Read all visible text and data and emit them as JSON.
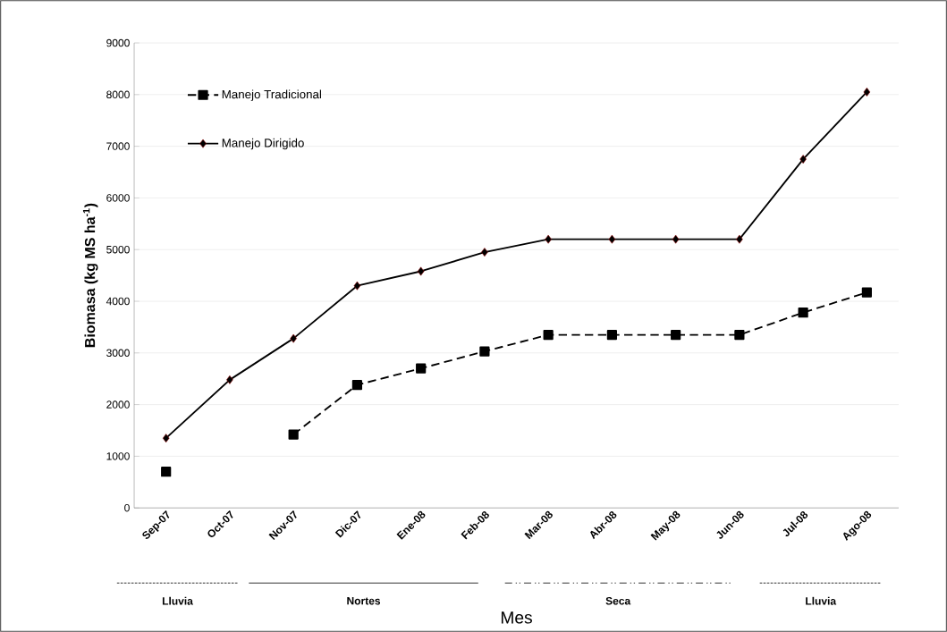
{
  "chart_data": {
    "type": "line",
    "xlabel": "Mes",
    "ylabel": "**Biomasa (kg MS ha$^{-1}$)**",
    "categories": [
      "Sep-07",
      "Oct-07",
      "Nov-07",
      "Dic-07",
      "Ene-08",
      "Feb-08",
      "Mar-08",
      "Abr-08",
      "May-08",
      "Jun-08",
      "Jul-08",
      "Ago-08"
    ],
    "series": [
      {
        "name": "Manejo Tradicional",
        "color": "#000000",
        "marker": "square",
        "line_style": "dashed",
        "values": [
          700,
          null,
          1420,
          2380,
          2700,
          3030,
          3350,
          3350,
          3350,
          3350,
          3780,
          4170
        ]
      },
      {
        "name": "Manejo Dirigido",
        "color": "#000000",
        "marker": "diamond",
        "line_style": "solid",
        "values": [
          1350,
          2480,
          3280,
          4300,
          4580,
          4950,
          5200,
          5200,
          5200,
          5200,
          6750,
          8050
        ]
      }
    ],
    "ylim": [
      0,
      9000
    ],
    "yticks": [
      0,
      1000,
      2000,
      3000,
      4000,
      5000,
      6000,
      7000,
      8000,
      9000
    ],
    "grid": "y",
    "legend": "top left",
    "annotations": [
      "Lluvia",
      "Nortes",
      "Seca",
      "Lluvia"
    ]
  }
}
